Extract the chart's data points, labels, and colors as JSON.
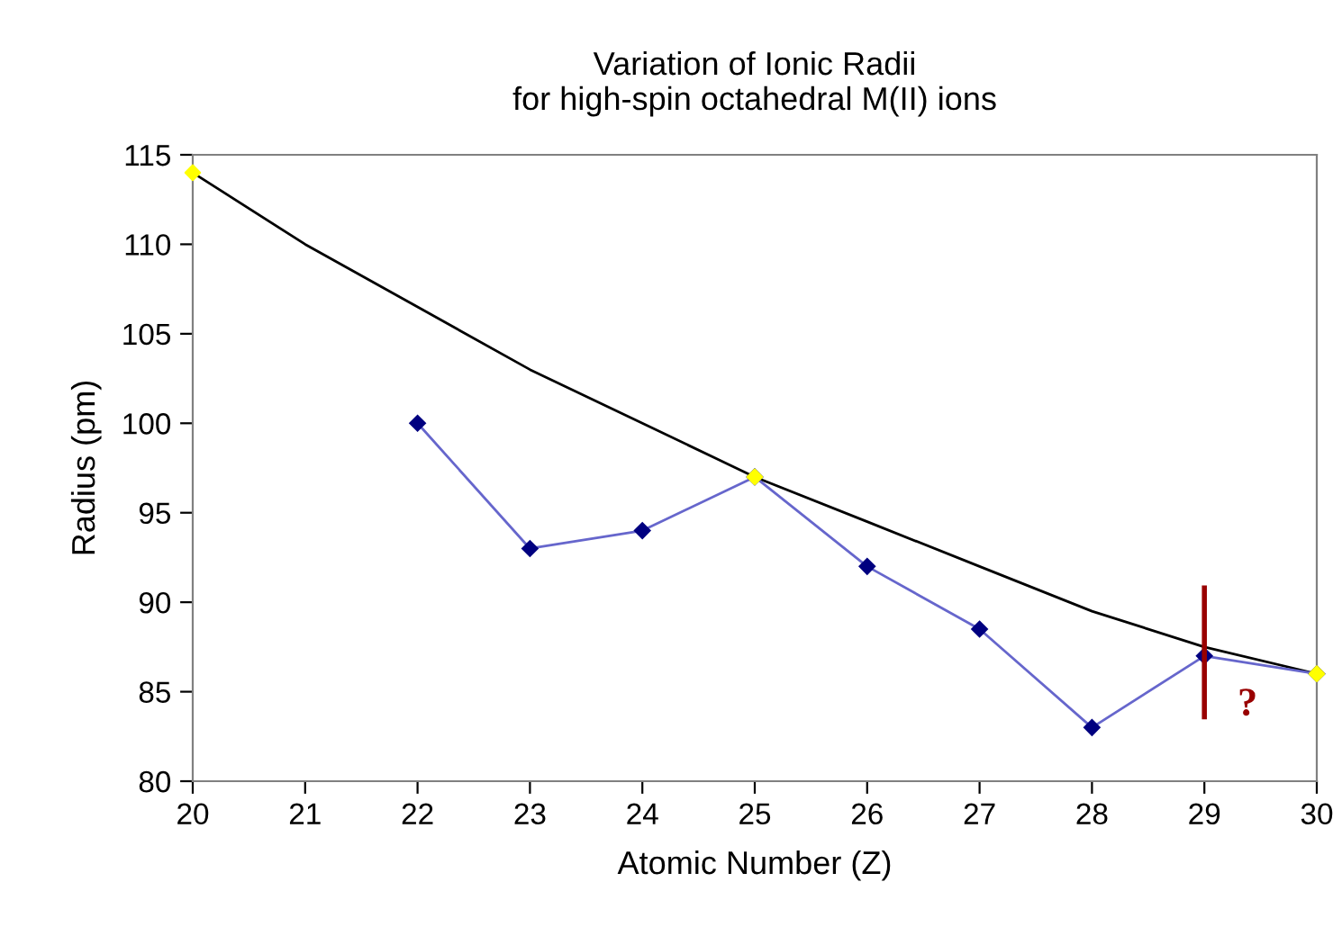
{
  "chart_data": {
    "type": "line",
    "title": "Variation of Ionic Radii\nfor high-spin octahedral M(II) ions",
    "xlabel": "Atomic Number (Z)",
    "ylabel": "Radius (pm)",
    "xlim": [
      20,
      30
    ],
    "xticks": [
      20,
      21,
      22,
      23,
      24,
      25,
      26,
      27,
      28,
      29,
      30
    ],
    "ylim": [
      80,
      115
    ],
    "yticks": [
      80,
      85,
      90,
      95,
      100,
      105,
      110,
      115
    ],
    "grid": false,
    "series": [
      {
        "color": "#000000",
        "x": [
          20,
          21,
          22,
          23,
          24,
          25,
          26,
          27,
          28,
          29,
          30
        ],
        "values": [
          114,
          110,
          106.5,
          103,
          100,
          97,
          94.5,
          92,
          89.5,
          87.5,
          86
        ]
      },
      {
        "color": "#6666cc",
        "x": [
          22,
          23,
          24,
          25,
          26,
          27,
          28,
          29,
          30
        ],
        "values": [
          100,
          93,
          94,
          97,
          92,
          88.5,
          83,
          87,
          86
        ],
        "marker": "diamond"
      },
      {
        "type": "scatter",
        "color": "#ffff00",
        "x": [
          20,
          25,
          30
        ],
        "values": [
          114,
          97,
          86
        ],
        "marker": "diamond"
      },
      {
        "color": "#990000",
        "x": [
          29,
          29
        ],
        "values": [
          90.8,
          83.6
        ]
      }
    ],
    "annotations": [
      "?"
    ]
  }
}
